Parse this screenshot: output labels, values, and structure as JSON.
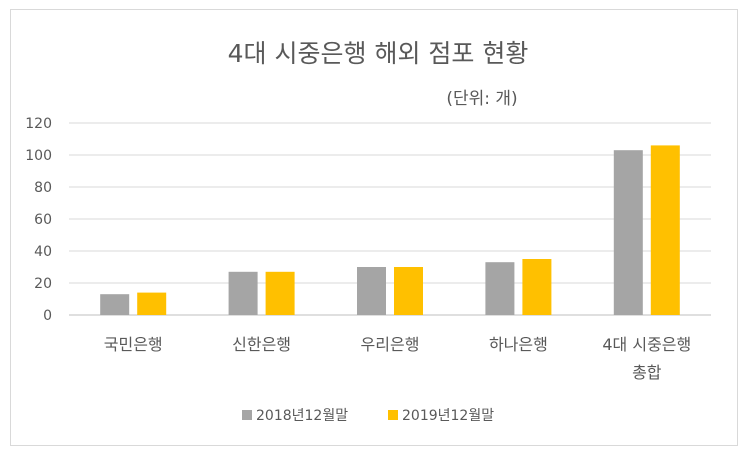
{
  "chart_data": {
    "type": "bar",
    "title": "4대 시중은행 해외 점포 현황",
    "subtitle": "(단위: 개)",
    "categories": [
      [
        "국민은행"
      ],
      [
        "신한은행"
      ],
      [
        "우리은행"
      ],
      [
        "하나은행"
      ],
      [
        "4대 시중은행",
        "총합"
      ]
    ],
    "series": [
      {
        "name": "2018년12월말",
        "color": "#a5a5a5",
        "values": [
          13,
          27,
          30,
          33,
          103
        ]
      },
      {
        "name": "2019년12월말",
        "color": "#ffc000",
        "values": [
          14,
          27,
          30,
          35,
          106
        ]
      }
    ],
    "ylim": [
      0,
      120
    ],
    "yticks": [
      0,
      20,
      40,
      60,
      80,
      100,
      120
    ],
    "grid": true,
    "legend": "bottom"
  }
}
